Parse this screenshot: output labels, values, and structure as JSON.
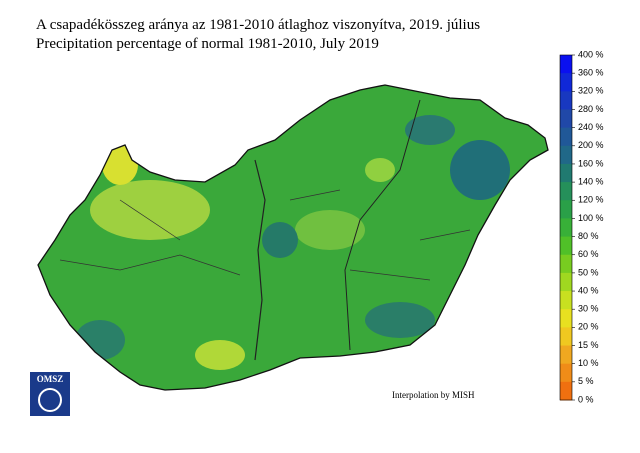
{
  "header": {
    "title_hu": "A csapadékösszeg aránya az 1981-2010 átlaghoz viszonyítva, 2019. július",
    "title_en": "Precipitation percentage of normal 1981-2010, July 2019"
  },
  "legend": {
    "labels": [
      "400 %",
      "360 %",
      "320 %",
      "280 %",
      "240 %",
      "200 %",
      "160 %",
      "140 %",
      "120 %",
      "100 %",
      "80 %",
      "60 %",
      "50 %",
      "40 %",
      "30 %",
      "20 %",
      "15 %",
      "10 %",
      "5 %",
      "0 %"
    ],
    "colors": [
      "#0a10f0",
      "#1028d8",
      "#1838c0",
      "#2048a8",
      "#205898",
      "#206888",
      "#207a70",
      "#25905a",
      "#2aa048",
      "#38b038",
      "#50c028",
      "#78cc20",
      "#a0d820",
      "#c8e020",
      "#e8e020",
      "#f0c820",
      "#f0a820",
      "#f08c18",
      "#f07010"
    ]
  },
  "credit": "Interpolation by MISH",
  "logo": "OMSZ"
}
